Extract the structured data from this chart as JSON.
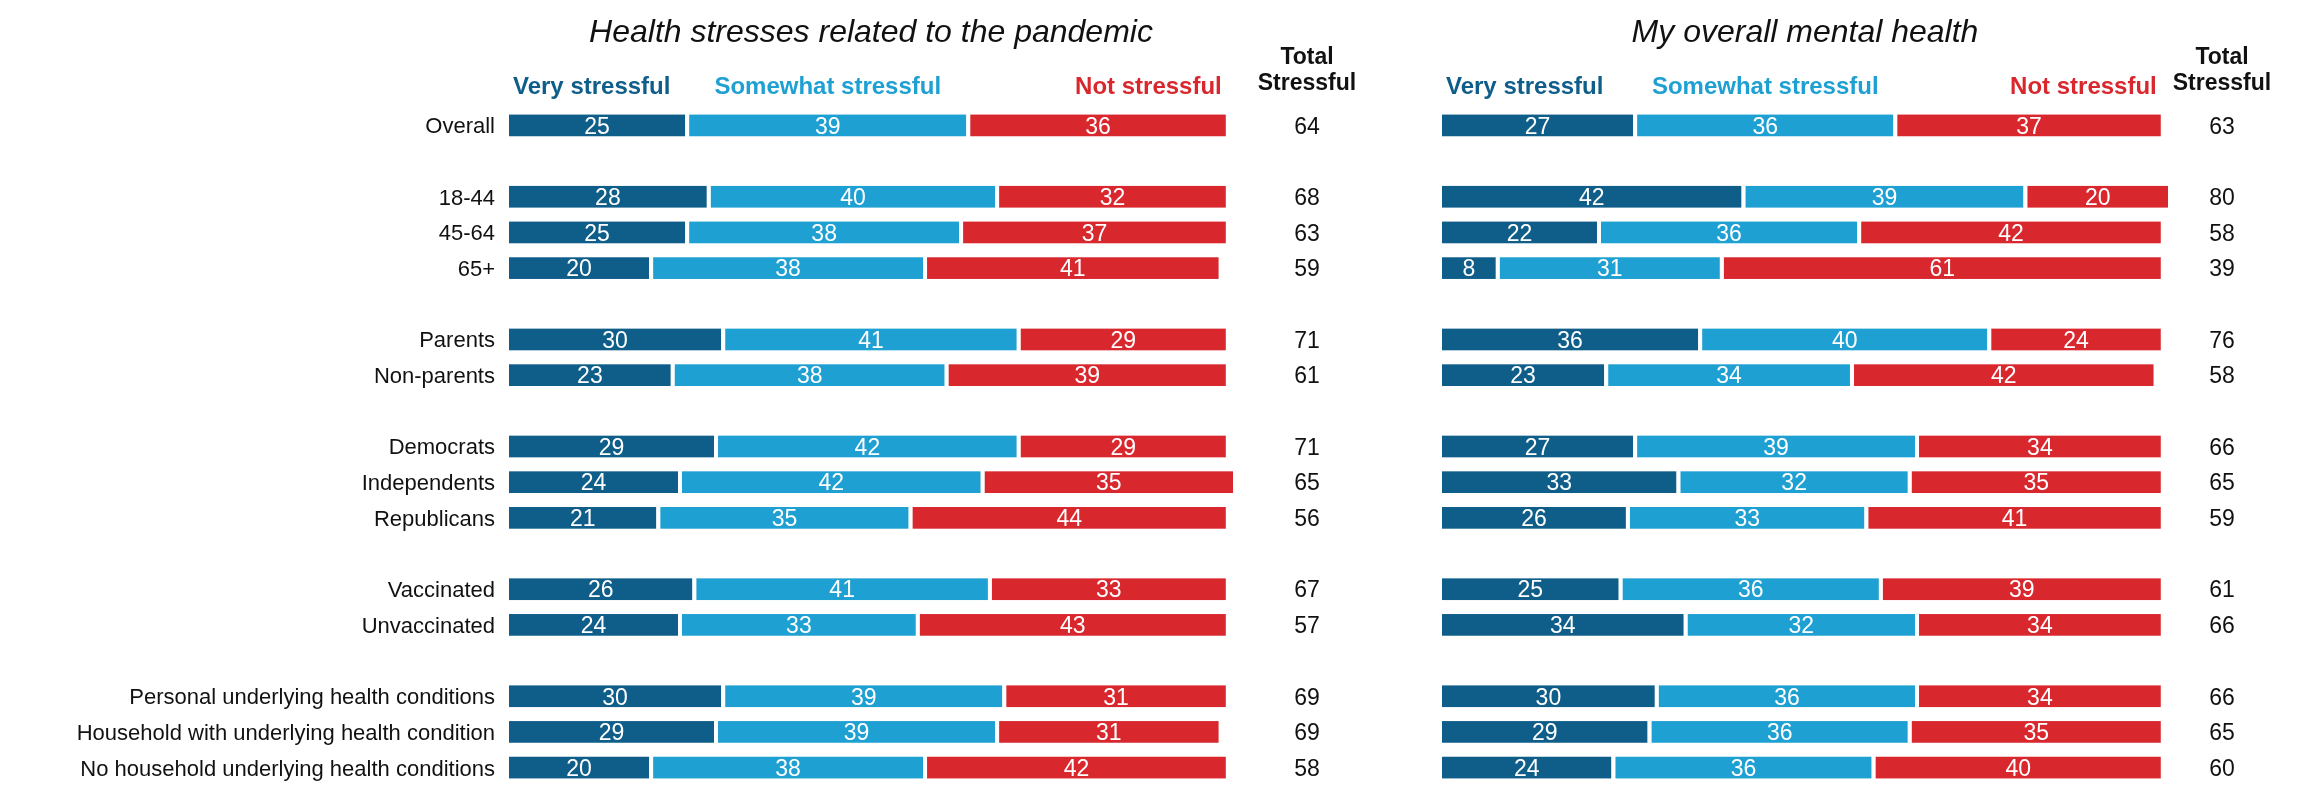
{
  "chart_data": [
    {
      "type": "bar",
      "orientation": "horizontal",
      "stacked": true,
      "data_labels": true,
      "legend": "top",
      "tick_labels": "y",
      "title": "Health stresses related to the pandemic",
      "categories": [
        "Overall",
        null,
        "18-44",
        "45-64",
        "65+",
        null,
        "Parents",
        "Non-parents",
        null,
        "Democrats",
        "Independents",
        "Republicans",
        null,
        "Vaccinated",
        "Unvaccinated",
        null,
        "Personal underlying health conditions",
        "Household with underlying health condition",
        "No household underlying health conditions"
      ],
      "series": [
        {
          "name": "Very stressful",
          "color": "#0f5e8a",
          "values": [
            25,
            null,
            28,
            25,
            20,
            null,
            30,
            23,
            null,
            29,
            24,
            21,
            null,
            26,
            24,
            null,
            30,
            29,
            20
          ]
        },
        {
          "name": "Somewhat stressful",
          "color": "#1fa0d2",
          "values": [
            39,
            null,
            40,
            38,
            38,
            null,
            41,
            38,
            null,
            42,
            42,
            35,
            null,
            41,
            33,
            null,
            39,
            39,
            38
          ]
        },
        {
          "name": "Not stressful",
          "color": "#d9272e",
          "values": [
            36,
            null,
            32,
            37,
            41,
            null,
            29,
            39,
            null,
            29,
            35,
            44,
            null,
            33,
            43,
            null,
            31,
            31,
            42
          ]
        }
      ],
      "annotations": [
        "Total Stressful",
        "64",
        "68",
        "63",
        "59",
        "71",
        "61",
        "71",
        "65",
        "56",
        "67",
        "57",
        "69",
        "69",
        "58"
      ]
    },
    {
      "type": "bar",
      "orientation": "horizontal",
      "stacked": true,
      "data_labels": true,
      "legend": "top",
      "tick_labels": false,
      "title": "My overall mental health",
      "categories": [
        null,
        null,
        null,
        null,
        null,
        null,
        null,
        null,
        null,
        null,
        null,
        null,
        null,
        null,
        null,
        null,
        null,
        null,
        null
      ],
      "series": [
        {
          "name": "Very stressful",
          "color": "#0f5e8a",
          "values": [
            27,
            null,
            42,
            22,
            8,
            null,
            36,
            23,
            null,
            27,
            33,
            26,
            null,
            25,
            34,
            null,
            30,
            29,
            24
          ]
        },
        {
          "name": "Somewhat stressful",
          "color": "#1fa0d2",
          "values": [
            36,
            null,
            39,
            36,
            31,
            null,
            40,
            34,
            null,
            39,
            32,
            33,
            null,
            36,
            32,
            null,
            36,
            36,
            36
          ]
        },
        {
          "name": "Not stressful",
          "color": "#d9272e",
          "values": [
            37,
            null,
            20,
            42,
            61,
            null,
            24,
            42,
            null,
            34,
            35,
            41,
            null,
            39,
            34,
            null,
            34,
            35,
            40
          ]
        }
      ],
      "annotations": [
        "Total Stressful",
        "63",
        "80",
        "58",
        "39",
        "76",
        "58",
        "66",
        "65",
        "59",
        "61",
        "66",
        "66",
        "65",
        "60"
      ]
    }
  ]
}
